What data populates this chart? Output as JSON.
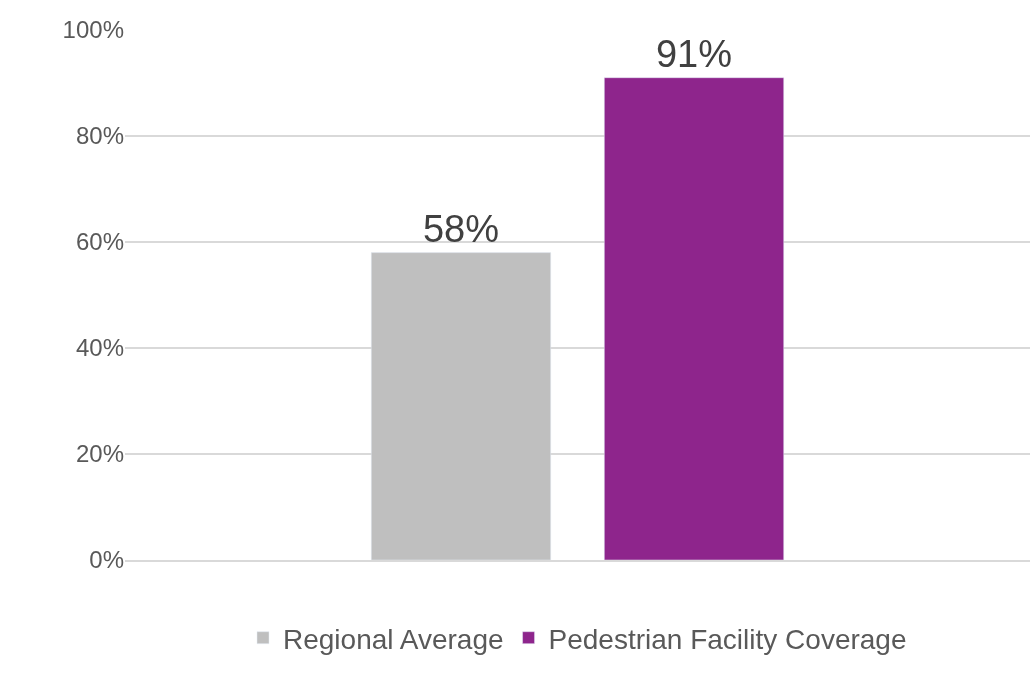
{
  "chart_data": {
    "type": "bar",
    "categories": [
      null
    ],
    "series": [
      {
        "name": "Regional Average",
        "color": "#bfbfbf",
        "values": [
          58
        ],
        "value_labels": [
          "58%"
        ]
      },
      {
        "name": "Pedestrian Facility Coverage",
        "color": "#8e258c",
        "values": [
          91
        ],
        "value_labels": [
          "91%"
        ]
      }
    ],
    "ylim": [
      0,
      100
    ],
    "yticks": [
      {
        "value": 0,
        "label": "0%"
      },
      {
        "value": 20,
        "label": "20%"
      },
      {
        "value": 40,
        "label": "40%"
      },
      {
        "value": 60,
        "label": "60%"
      },
      {
        "value": 80,
        "label": "80%"
      },
      {
        "value": 100,
        "label": "100%"
      }
    ],
    "grid": "y",
    "legend": "bottom"
  }
}
